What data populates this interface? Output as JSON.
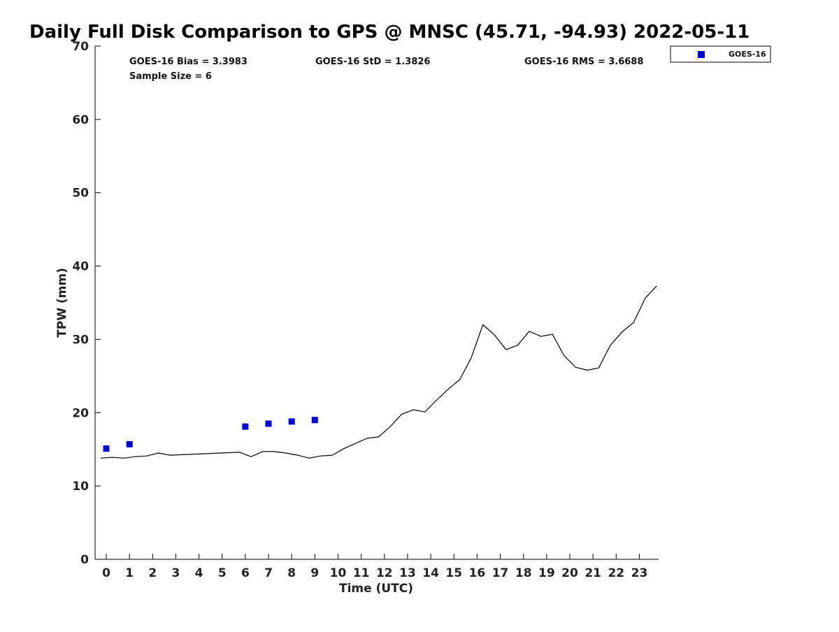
{
  "chart_data": {
    "type": "scatter",
    "title": "Daily Full Disk Comparison to GPS @ MNSC (45.71, -94.93) 2022-05-11",
    "xlabel": "Time (UTC)",
    "ylabel": "TPW (mm)",
    "xlim": [
      -0.5,
      23.8
    ],
    "ylim": [
      0,
      70
    ],
    "xticks": [
      "0",
      "1",
      "2",
      "3",
      "4",
      "5",
      "6",
      "7",
      "8",
      "9",
      "10",
      "11",
      "12",
      "13",
      "14",
      "15",
      "16",
      "17",
      "18",
      "19",
      "20",
      "21",
      "22",
      "23"
    ],
    "yticks": [
      "0",
      "10",
      "20",
      "30",
      "40",
      "50",
      "60",
      "70"
    ],
    "grid": false,
    "legend_position": "top-right",
    "stats": {
      "bias": "GOES-16 Bias = 3.3983",
      "std": "GOES-16 StD = 1.3826",
      "rms": "GOES-16 RMS = 3.6688",
      "sample": "Sample Size = 6"
    },
    "series": [
      {
        "name": "GOES-16",
        "kind": "scatter",
        "color": "#0000dd",
        "x": [
          0.0,
          1.0,
          6.0,
          7.0,
          8.0,
          9.0
        ],
        "y": [
          15.1,
          15.7,
          18.1,
          18.5,
          18.8,
          19.0
        ]
      },
      {
        "kind": "line",
        "color": "#000000",
        "x": [
          -0.25,
          0.25,
          0.75,
          1.25,
          1.75,
          2.25,
          2.75,
          5.75,
          6.25,
          6.75,
          7.25,
          7.75,
          8.25,
          8.75,
          9.25,
          9.75,
          10.25,
          10.75,
          11.25,
          11.75,
          12.25,
          12.75,
          13.25,
          13.75,
          14.25,
          14.75,
          15.25,
          15.75,
          16.25,
          16.75,
          17.25,
          17.75,
          18.25,
          18.75,
          19.25,
          19.75,
          20.25,
          20.75,
          21.25,
          21.75,
          22.25,
          22.75,
          23.25,
          23.75
        ],
        "y": [
          13.8,
          13.9,
          13.8,
          14.0,
          14.1,
          14.5,
          14.2,
          14.6,
          14.0,
          14.7,
          14.7,
          14.5,
          14.2,
          13.8,
          14.1,
          14.2,
          15.1,
          15.8,
          16.5,
          16.7,
          18.1,
          19.8,
          20.4,
          20.1,
          21.7,
          23.2,
          24.5,
          27.5,
          32.0,
          30.6,
          28.6,
          29.2,
          31.1,
          30.4,
          30.7,
          27.8,
          26.2,
          25.8,
          26.1,
          29.2,
          31.0,
          32.3,
          35.6,
          37.3
        ]
      }
    ]
  }
}
